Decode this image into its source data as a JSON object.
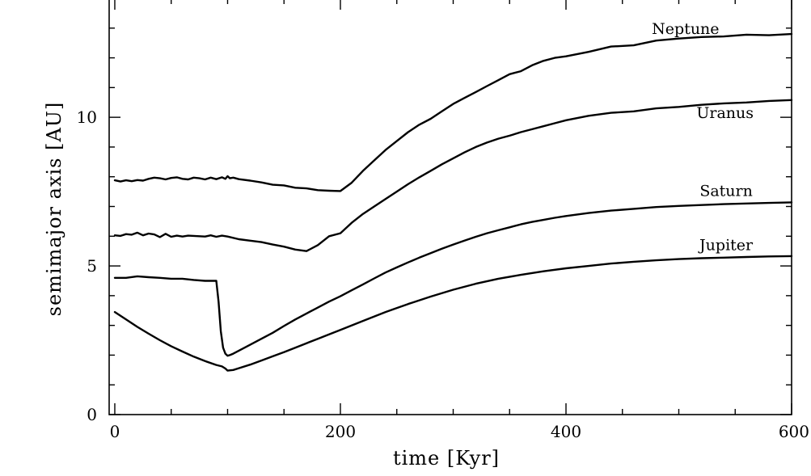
{
  "chart_data": {
    "type": "line",
    "xlabel": "time [Kyr]",
    "ylabel": "semimajor axis [AU]",
    "xlim": [
      -5,
      600
    ],
    "ylim": [
      0,
      14
    ],
    "x_ticks": [
      0,
      200,
      400,
      600
    ],
    "y_ticks": [
      0,
      5,
      10
    ],
    "grid": false,
    "series": [
      {
        "name": "Neptune",
        "label_at": [
          506,
          12.8
        ],
        "x": [
          0,
          5,
          10,
          15,
          20,
          25,
          30,
          35,
          40,
          45,
          50,
          55,
          60,
          65,
          70,
          75,
          80,
          85,
          90,
          95,
          98,
          100,
          102,
          105,
          110,
          120,
          130,
          140,
          150,
          160,
          170,
          180,
          190,
          200,
          210,
          220,
          230,
          240,
          250,
          260,
          270,
          280,
          290,
          300,
          310,
          320,
          330,
          340,
          350,
          360,
          370,
          380,
          390,
          400,
          420,
          440,
          460,
          480,
          500,
          520,
          540,
          560,
          580,
          600
        ],
        "y": [
          7.88,
          7.84,
          7.88,
          7.85,
          7.89,
          7.87,
          7.93,
          7.97,
          7.95,
          7.91,
          7.96,
          7.98,
          7.93,
          7.91,
          7.97,
          7.95,
          7.91,
          7.97,
          7.92,
          7.98,
          7.93,
          8.02,
          7.95,
          7.97,
          7.92,
          7.87,
          7.81,
          7.73,
          7.71,
          7.63,
          7.61,
          7.55,
          7.53,
          7.52,
          7.8,
          8.2,
          8.55,
          8.9,
          9.2,
          9.5,
          9.75,
          9.95,
          10.2,
          10.45,
          10.65,
          10.85,
          11.05,
          11.25,
          11.45,
          11.55,
          11.75,
          11.9,
          12.0,
          12.05,
          12.2,
          12.38,
          12.42,
          12.58,
          12.65,
          12.7,
          12.72,
          12.78,
          12.76,
          12.8
        ]
      },
      {
        "name": "Uranus",
        "label_at": [
          541,
          9.98
        ],
        "x": [
          0,
          5,
          10,
          15,
          20,
          25,
          30,
          35,
          40,
          45,
          50,
          55,
          60,
          65,
          70,
          75,
          80,
          85,
          90,
          95,
          100,
          110,
          120,
          130,
          140,
          150,
          160,
          170,
          180,
          190,
          200,
          210,
          220,
          230,
          240,
          250,
          260,
          270,
          280,
          290,
          300,
          310,
          320,
          330,
          340,
          350,
          360,
          370,
          380,
          390,
          400,
          420,
          440,
          460,
          480,
          500,
          520,
          540,
          560,
          580,
          600
        ],
        "y": [
          6.03,
          6.01,
          6.07,
          6.05,
          6.12,
          6.03,
          6.09,
          6.06,
          5.97,
          6.08,
          5.98,
          6.02,
          5.99,
          6.02,
          6.01,
          6.0,
          5.99,
          6.03,
          5.98,
          6.02,
          5.99,
          5.9,
          5.85,
          5.8,
          5.72,
          5.65,
          5.55,
          5.5,
          5.7,
          6.0,
          6.1,
          6.45,
          6.75,
          7.0,
          7.25,
          7.5,
          7.75,
          7.98,
          8.2,
          8.42,
          8.62,
          8.82,
          9.0,
          9.15,
          9.28,
          9.38,
          9.5,
          9.6,
          9.7,
          9.8,
          9.9,
          10.05,
          10.15,
          10.2,
          10.3,
          10.35,
          10.42,
          10.47,
          10.5,
          10.55,
          10.58
        ]
      },
      {
        "name": "Saturn",
        "label_at": [
          542,
          7.35
        ],
        "x": [
          0,
          10,
          20,
          30,
          40,
          50,
          60,
          70,
          80,
          85,
          90,
          92,
          94,
          96,
          98,
          100,
          102,
          105,
          110,
          120,
          130,
          140,
          150,
          160,
          170,
          180,
          190,
          200,
          210,
          220,
          230,
          240,
          250,
          260,
          270,
          280,
          290,
          300,
          310,
          320,
          330,
          340,
          350,
          360,
          370,
          380,
          390,
          400,
          420,
          440,
          460,
          480,
          500,
          520,
          540,
          560,
          580,
          600
        ],
        "y": [
          4.6,
          4.6,
          4.65,
          4.62,
          4.6,
          4.57,
          4.57,
          4.53,
          4.5,
          4.5,
          4.5,
          3.8,
          2.8,
          2.25,
          2.05,
          1.98,
          2.0,
          2.05,
          2.15,
          2.35,
          2.55,
          2.75,
          2.98,
          3.2,
          3.4,
          3.6,
          3.8,
          3.98,
          4.18,
          4.38,
          4.58,
          4.78,
          4.95,
          5.12,
          5.28,
          5.43,
          5.58,
          5.72,
          5.85,
          5.98,
          6.1,
          6.2,
          6.3,
          6.4,
          6.48,
          6.55,
          6.62,
          6.68,
          6.78,
          6.86,
          6.92,
          6.98,
          7.02,
          7.05,
          7.08,
          7.1,
          7.12,
          7.14
        ]
      },
      {
        "name": "Jupiter",
        "label_at": [
          542,
          5.53
        ],
        "x": [
          0,
          10,
          20,
          30,
          40,
          50,
          60,
          70,
          80,
          90,
          95,
          98,
          100,
          105,
          110,
          120,
          130,
          140,
          150,
          160,
          170,
          180,
          190,
          200,
          220,
          240,
          260,
          280,
          300,
          320,
          340,
          360,
          380,
          400,
          420,
          440,
          460,
          480,
          500,
          520,
          540,
          560,
          580,
          600
        ],
        "y": [
          3.45,
          3.2,
          2.95,
          2.72,
          2.5,
          2.3,
          2.12,
          1.95,
          1.8,
          1.67,
          1.62,
          1.55,
          1.48,
          1.5,
          1.56,
          1.68,
          1.82,
          1.96,
          2.1,
          2.25,
          2.4,
          2.55,
          2.7,
          2.85,
          3.15,
          3.45,
          3.72,
          3.97,
          4.2,
          4.4,
          4.57,
          4.7,
          4.82,
          4.92,
          5.0,
          5.08,
          5.14,
          5.19,
          5.23,
          5.26,
          5.28,
          5.3,
          5.32,
          5.33
        ]
      }
    ]
  }
}
